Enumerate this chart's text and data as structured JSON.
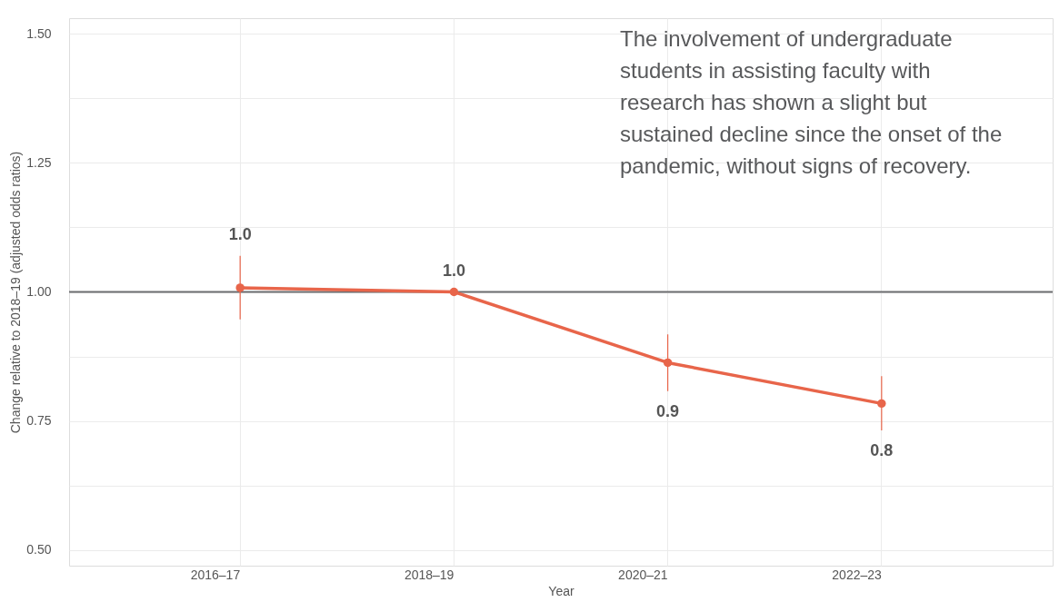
{
  "chart_data": {
    "type": "line",
    "xlabel": "Year",
    "ylabel": "Change relative to 2018–19 (adjusted odds ratios)",
    "annotations": [
      "The involvement of undergraduate students in assisting faculty with research has shown a slight but sustained decline since the onset of the pandemic, without signs of recovery."
    ],
    "categories": [
      "2016–17",
      "2018–19",
      "2020–21",
      "2022–23"
    ],
    "series": [
      {
        "color": "#e8654a",
        "values": [
          1.008,
          1.0,
          0.863,
          0.784
        ],
        "errors": [
          [
            0.947,
            1.07
          ],
          null,
          [
            0.808,
            0.918
          ],
          [
            0.732,
            0.837
          ]
        ],
        "value_labels": [
          "1.0",
          "1.0",
          "0.9",
          "0.8"
        ]
      }
    ],
    "ylim": [
      0.47,
      1.53
    ],
    "yticks": [
      {
        "value": 0.5,
        "label": "0.50"
      },
      {
        "value": 0.625,
        "label": null
      },
      0.75,
      {
        "value": 0.875,
        "label": null
      },
      {
        "value": 1.0,
        "label": "1.00"
      },
      {
        "value": 1.125,
        "label": null
      },
      1.25,
      {
        "value": 1.375,
        "label": null
      },
      {
        "value": 1.5,
        "label": "1.50"
      }
    ],
    "ref_lines": [
      {
        "axis": "y",
        "value": 1.0,
        "color": "#6d6e71"
      }
    ],
    "grid": true,
    "marker": "circle",
    "line_style": "solid"
  }
}
